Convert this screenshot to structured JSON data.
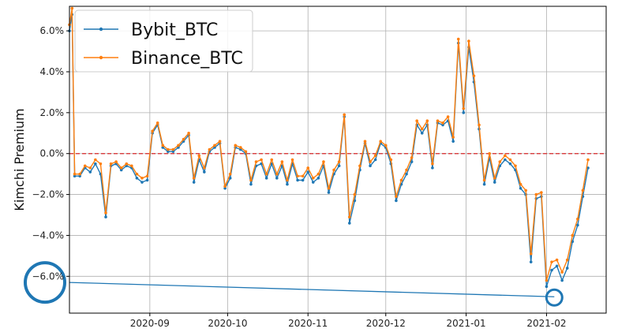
{
  "chart_data": {
    "type": "line",
    "ylabel": "Kimchi Premium",
    "xlabel": "",
    "title": "",
    "legend_position": "top-left",
    "grid": true,
    "ylim": [
      -7.8,
      7.2
    ],
    "xlim": [
      "2020-08-01",
      "2021-02-24"
    ],
    "y_ticks": [
      -6,
      -4,
      -2,
      0,
      2,
      4,
      6
    ],
    "y_tick_labels": [
      "−6.0%",
      "−4.0%",
      "−2.0%",
      "0.0%",
      "2.0%",
      "4.0%",
      "6.0%"
    ],
    "x_ticks": [
      "2020-09-01",
      "2020-10-01",
      "2020-11-01",
      "2020-12-01",
      "2021-01-01",
      "2021-02-01"
    ],
    "x_tick_labels": [
      "2020-09",
      "2020-10",
      "2020-11",
      "2020-12",
      "2021-01",
      "2021-02"
    ],
    "reference_line": {
      "y": 0,
      "style": "dashed",
      "color": "#d62728"
    },
    "series": [
      {
        "name": "Bybit_BTC",
        "color": "#1f77b4",
        "x": [
          "2020-08-01",
          "2020-08-02",
          "2020-08-03",
          "2020-08-05",
          "2020-08-07",
          "2020-08-09",
          "2020-08-11",
          "2020-08-13",
          "2020-08-15",
          "2020-08-17",
          "2020-08-19",
          "2020-08-21",
          "2020-08-23",
          "2020-08-25",
          "2020-08-27",
          "2020-08-29",
          "2020-08-31",
          "2020-09-02",
          "2020-09-04",
          "2020-09-06",
          "2020-09-08",
          "2020-09-10",
          "2020-09-12",
          "2020-09-14",
          "2020-09-16",
          "2020-09-18",
          "2020-09-20",
          "2020-09-22",
          "2020-09-24",
          "2020-09-26",
          "2020-09-28",
          "2020-09-30",
          "2020-10-02",
          "2020-10-04",
          "2020-10-06",
          "2020-10-08",
          "2020-10-10",
          "2020-10-12",
          "2020-10-14",
          "2020-10-16",
          "2020-10-18",
          "2020-10-20",
          "2020-10-22",
          "2020-10-24",
          "2020-10-26",
          "2020-10-28",
          "2020-10-30",
          "2020-11-01",
          "2020-11-03",
          "2020-11-05",
          "2020-11-07",
          "2020-11-09",
          "2020-11-11",
          "2020-11-13",
          "2020-11-15",
          "2020-11-17",
          "2020-11-19",
          "2020-11-21",
          "2020-11-23",
          "2020-11-25",
          "2020-11-27",
          "2020-11-29",
          "2020-12-01",
          "2020-12-03",
          "2020-12-05",
          "2020-12-07",
          "2020-12-09",
          "2020-12-11",
          "2020-12-13",
          "2020-12-15",
          "2020-12-17",
          "2020-12-19",
          "2020-12-21",
          "2020-12-23",
          "2020-12-25",
          "2020-12-27",
          "2020-12-29",
          "2020-12-31",
          "2021-01-02",
          "2021-01-04",
          "2021-01-06",
          "2021-01-08",
          "2021-01-10",
          "2021-01-12",
          "2021-01-14",
          "2021-01-16",
          "2021-01-18",
          "2021-01-20",
          "2021-01-22",
          "2021-01-24",
          "2021-01-26",
          "2021-01-28",
          "2021-01-30",
          "2021-02-01",
          "2021-02-03",
          "2021-02-05",
          "2021-02-07",
          "2021-02-09",
          "2021-02-11",
          "2021-02-13",
          "2021-02-15",
          "2021-02-17"
        ],
        "values": [
          6.0,
          6.8,
          -1.1,
          -1.1,
          -0.7,
          -0.9,
          -0.5,
          -1.0,
          -3.1,
          -0.6,
          -0.5,
          -0.8,
          -0.6,
          -0.7,
          -1.2,
          -1.4,
          -1.3,
          1.0,
          1.4,
          0.3,
          0.1,
          0.1,
          0.3,
          0.6,
          0.9,
          -1.4,
          -0.3,
          -0.9,
          0.1,
          0.3,
          0.5,
          -1.7,
          -1.2,
          0.3,
          0.2,
          0.0,
          -1.5,
          -0.6,
          -0.5,
          -1.2,
          -0.5,
          -1.2,
          -0.6,
          -1.5,
          -0.5,
          -1.3,
          -1.3,
          -0.9,
          -1.4,
          -1.2,
          -0.6,
          -1.9,
          -1.0,
          -0.6,
          1.8,
          -3.4,
          -2.3,
          -0.8,
          0.5,
          -0.6,
          -0.3,
          0.5,
          0.3,
          -0.5,
          -2.3,
          -1.5,
          -1.0,
          -0.4,
          1.4,
          1.0,
          1.4,
          -0.7,
          1.5,
          1.4,
          1.6,
          0.6,
          5.4,
          2.0,
          5.2,
          3.5,
          1.2,
          -1.5,
          -0.2,
          -1.4,
          -0.6,
          -0.3,
          -0.5,
          -0.8,
          -1.7,
          -2.0,
          -5.3,
          -2.2,
          -2.1,
          -6.5,
          -5.7,
          -5.5,
          -6.2,
          -5.6,
          -4.3,
          -3.5,
          -2.1,
          -0.7
        ]
      },
      {
        "name": "Binance_BTC",
        "color": "#ff7f0e",
        "x": [
          "2020-08-01",
          "2020-08-02",
          "2020-08-03",
          "2020-08-05",
          "2020-08-07",
          "2020-08-09",
          "2020-08-11",
          "2020-08-13",
          "2020-08-15",
          "2020-08-17",
          "2020-08-19",
          "2020-08-21",
          "2020-08-23",
          "2020-08-25",
          "2020-08-27",
          "2020-08-29",
          "2020-08-31",
          "2020-09-02",
          "2020-09-04",
          "2020-09-06",
          "2020-09-08",
          "2020-09-10",
          "2020-09-12",
          "2020-09-14",
          "2020-09-16",
          "2020-09-18",
          "2020-09-20",
          "2020-09-22",
          "2020-09-24",
          "2020-09-26",
          "2020-09-28",
          "2020-09-30",
          "2020-10-02",
          "2020-10-04",
          "2020-10-06",
          "2020-10-08",
          "2020-10-10",
          "2020-10-12",
          "2020-10-14",
          "2020-10-16",
          "2020-10-18",
          "2020-10-20",
          "2020-10-22",
          "2020-10-24",
          "2020-10-26",
          "2020-10-28",
          "2020-10-30",
          "2020-11-01",
          "2020-11-03",
          "2020-11-05",
          "2020-11-07",
          "2020-11-09",
          "2020-11-11",
          "2020-11-13",
          "2020-11-15",
          "2020-11-17",
          "2020-11-19",
          "2020-11-21",
          "2020-11-23",
          "2020-11-25",
          "2020-11-27",
          "2020-11-29",
          "2020-12-01",
          "2020-12-03",
          "2020-12-05",
          "2020-12-07",
          "2020-12-09",
          "2020-12-11",
          "2020-12-13",
          "2020-12-15",
          "2020-12-17",
          "2020-12-19",
          "2020-12-21",
          "2020-12-23",
          "2020-12-25",
          "2020-12-27",
          "2020-12-29",
          "2020-12-31",
          "2021-01-02",
          "2021-01-04",
          "2021-01-06",
          "2021-01-08",
          "2021-01-10",
          "2021-01-12",
          "2021-01-14",
          "2021-01-16",
          "2021-01-18",
          "2021-01-20",
          "2021-01-22",
          "2021-01-24",
          "2021-01-26",
          "2021-01-28",
          "2021-01-30",
          "2021-02-01",
          "2021-02-03",
          "2021-02-05",
          "2021-02-07",
          "2021-02-09",
          "2021-02-11",
          "2021-02-13",
          "2021-02-15",
          "2021-02-17"
        ],
        "values": [
          6.3,
          7.1,
          -1.0,
          -1.0,
          -0.6,
          -0.7,
          -0.3,
          -0.5,
          -2.9,
          -0.5,
          -0.4,
          -0.7,
          -0.5,
          -0.6,
          -1.0,
          -1.2,
          -1.1,
          1.1,
          1.5,
          0.4,
          0.2,
          0.2,
          0.4,
          0.7,
          1.0,
          -1.2,
          -0.1,
          -0.7,
          0.2,
          0.4,
          0.6,
          -1.6,
          -1.0,
          0.4,
          0.3,
          0.1,
          -1.3,
          -0.4,
          -0.3,
          -1.0,
          -0.3,
          -1.0,
          -0.4,
          -1.3,
          -0.3,
          -1.1,
          -1.1,
          -0.7,
          -1.2,
          -1.0,
          -0.4,
          -1.7,
          -0.8,
          -0.4,
          1.9,
          -3.1,
          -2.0,
          -0.6,
          0.6,
          -0.4,
          -0.1,
          0.6,
          0.4,
          -0.3,
          -2.1,
          -1.3,
          -0.8,
          -0.2,
          1.6,
          1.2,
          1.6,
          -0.5,
          1.6,
          1.5,
          1.8,
          0.8,
          5.6,
          2.2,
          5.5,
          3.8,
          1.4,
          -1.3,
          0.0,
          -1.2,
          -0.4,
          -0.1,
          -0.3,
          -0.6,
          -1.5,
          -1.8,
          -4.9,
          -2.0,
          -1.9,
          -6.2,
          -5.3,
          -5.2,
          -5.8,
          -5.2,
          -4.0,
          -3.2,
          -1.8,
          -0.3
        ]
      }
    ],
    "annotations": [
      {
        "type": "circle",
        "x": "2020-07-22",
        "y": -6.3,
        "color": "#1f77b4"
      },
      {
        "type": "circle",
        "x": "2021-02-04",
        "y": -7.0,
        "color": "#1f77b4"
      },
      {
        "type": "line",
        "from": {
          "x": "2020-08-01",
          "y": -6.3
        },
        "to": {
          "x": "2021-02-04",
          "y": -7.0
        },
        "color": "#1f77b4"
      }
    ]
  }
}
